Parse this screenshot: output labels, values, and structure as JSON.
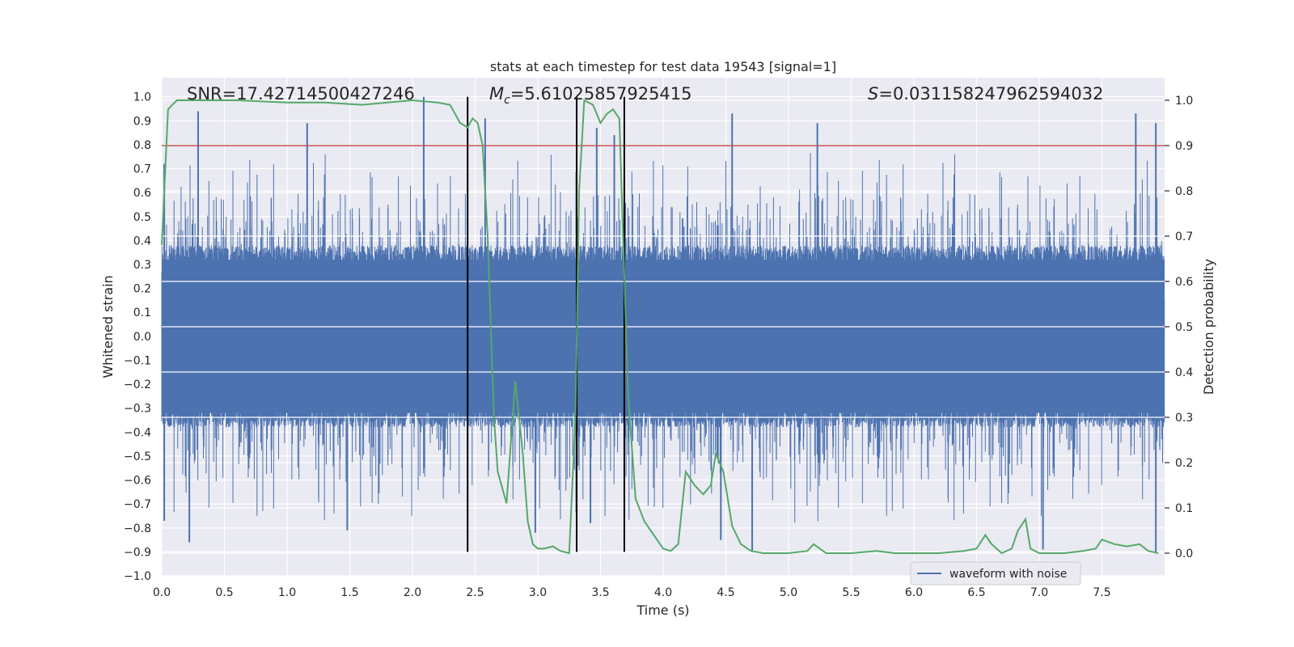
{
  "chart_data": {
    "type": "line",
    "title": "stats at each timestep for test data 19543 [signal=1]",
    "xlabel": "Time (s)",
    "ylabel": "Whitened strain",
    "y2label": "Detection probability",
    "xlim": [
      0,
      8
    ],
    "ylim": [
      -1.0,
      1.08
    ],
    "y2lim": [
      -0.05,
      1.05
    ],
    "x_ticks": [
      0.0,
      0.5,
      1.0,
      1.5,
      2.0,
      2.5,
      3.0,
      3.5,
      4.0,
      4.5,
      5.0,
      5.5,
      6.0,
      6.5,
      7.0,
      7.5
    ],
    "x_tick_labels": [
      "0.0",
      "0.5",
      "1.0",
      "1.5",
      "2.0",
      "2.5",
      "3.0",
      "3.5",
      "4.0",
      "4.5",
      "5.0",
      "5.5",
      "6.0",
      "6.5",
      "7.0",
      "7.5"
    ],
    "y_ticks": [
      -1.0,
      -0.9,
      -0.8,
      -0.7,
      -0.6,
      -0.5,
      -0.4,
      -0.3,
      -0.2,
      -0.1,
      0.0,
      0.1,
      0.2,
      0.3,
      0.4,
      0.5,
      0.6,
      0.7,
      0.8,
      0.9,
      1.0
    ],
    "y_tick_labels": [
      "−1.0",
      "−0.9",
      "−0.8",
      "−0.7",
      "−0.6",
      "−0.5",
      "−0.4",
      "−0.3",
      "−0.2",
      "−0.1",
      "0.0",
      "0.1",
      "0.2",
      "0.3",
      "0.4",
      "0.5",
      "0.6",
      "0.7",
      "0.8",
      "0.9",
      "1.0"
    ],
    "y2_ticks": [
      0.0,
      0.1,
      0.2,
      0.3,
      0.4,
      0.5,
      0.6,
      0.7,
      0.8,
      0.9,
      1.0
    ],
    "y2_tick_labels": [
      "0.0",
      "0.1",
      "0.2",
      "0.3",
      "0.4",
      "0.5",
      "0.6",
      "0.7",
      "0.8",
      "0.9",
      "1.0"
    ],
    "grid": true,
    "legend_position": "lower-right",
    "series": [
      {
        "name": "waveform with noise",
        "axis": "left",
        "color": "#4c72b0",
        "kind": "dense-noise",
        "envelope_typical": [
          -0.42,
          0.42
        ],
        "peaks": [
          {
            "x": 0.02,
            "y": 0.72
          },
          {
            "x": 0.29,
            "y": 0.94
          },
          {
            "x": 1.16,
            "y": 0.89
          },
          {
            "x": 2.09,
            "y": 1.0
          },
          {
            "x": 2.58,
            "y": 0.91
          },
          {
            "x": 3.47,
            "y": 0.87
          },
          {
            "x": 3.61,
            "y": 0.84
          },
          {
            "x": 4.55,
            "y": 0.93
          },
          {
            "x": 5.23,
            "y": 0.89
          },
          {
            "x": 7.77,
            "y": 0.93
          },
          {
            "x": 7.93,
            "y": 0.89
          }
        ],
        "troughs": [
          {
            "x": 0.02,
            "y": -0.77
          },
          {
            "x": 0.22,
            "y": -0.86
          },
          {
            "x": 1.48,
            "y": -0.81
          },
          {
            "x": 2.98,
            "y": -0.82
          },
          {
            "x": 3.42,
            "y": -0.78
          },
          {
            "x": 4.46,
            "y": -0.85
          },
          {
            "x": 4.71,
            "y": -0.9
          },
          {
            "x": 7.03,
            "y": -0.89
          },
          {
            "x": 7.93,
            "y": -0.9
          }
        ]
      },
      {
        "name": "",
        "axis": "right",
        "color": "#55a868",
        "kind": "line",
        "x": [
          0.0,
          0.05,
          0.12,
          0.3,
          0.6,
          1.0,
          1.3,
          1.6,
          1.8,
          2.0,
          2.2,
          2.3,
          2.38,
          2.44,
          2.48,
          2.52,
          2.56,
          2.6,
          2.65,
          2.68,
          2.75,
          2.82,
          2.88,
          2.92,
          2.96,
          3.0,
          3.05,
          3.12,
          3.18,
          3.25,
          3.3,
          3.33,
          3.37,
          3.44,
          3.5,
          3.55,
          3.6,
          3.65,
          3.68,
          3.72,
          3.78,
          3.85,
          3.95,
          4.0,
          4.06,
          4.12,
          4.18,
          4.25,
          4.32,
          4.38,
          4.42,
          4.48,
          4.55,
          4.62,
          4.7,
          4.8,
          5.0,
          5.15,
          5.2,
          5.3,
          5.5,
          5.7,
          5.85,
          6.0,
          6.2,
          6.4,
          6.5,
          6.57,
          6.62,
          6.7,
          6.78,
          6.83,
          6.89,
          6.93,
          7.0,
          7.2,
          7.35,
          7.45,
          7.5,
          7.6,
          7.7,
          7.8,
          7.87,
          7.95
        ],
        "values": [
          0.68,
          0.98,
          1.0,
          1.0,
          1.0,
          0.995,
          0.995,
          0.99,
          0.995,
          1.0,
          0.995,
          0.99,
          0.95,
          0.94,
          0.96,
          0.95,
          0.9,
          0.7,
          0.3,
          0.18,
          0.11,
          0.38,
          0.22,
          0.07,
          0.02,
          0.01,
          0.01,
          0.015,
          0.005,
          0.0,
          0.3,
          0.8,
          1.0,
          0.99,
          0.95,
          0.97,
          0.98,
          0.96,
          0.7,
          0.35,
          0.12,
          0.07,
          0.03,
          0.01,
          0.005,
          0.02,
          0.18,
          0.15,
          0.13,
          0.15,
          0.22,
          0.18,
          0.06,
          0.02,
          0.005,
          0.0,
          0.0,
          0.005,
          0.02,
          0.0,
          0.0,
          0.005,
          0.0,
          0.0,
          0.0,
          0.005,
          0.01,
          0.04,
          0.02,
          0.0,
          0.01,
          0.05,
          0.075,
          0.01,
          0.0,
          0.0,
          0.005,
          0.01,
          0.03,
          0.02,
          0.015,
          0.02,
          0.005,
          0.0
        ]
      }
    ],
    "threshold_line": {
      "axis": "right",
      "y": 0.9,
      "color": "#c44e52"
    },
    "vertical_lines": {
      "x": [
        2.44,
        3.31,
        3.69
      ],
      "color": "#000000",
      "y_range": [
        -0.9,
        1.0
      ]
    },
    "annotations": {
      "snr": "SNR=17.42714500427246",
      "mc_symbol": "M",
      "mc_sub": "c",
      "mc_value": "=5.61025857925415",
      "s_symbol": "S",
      "s_value": "=0.031158247962594032"
    }
  }
}
